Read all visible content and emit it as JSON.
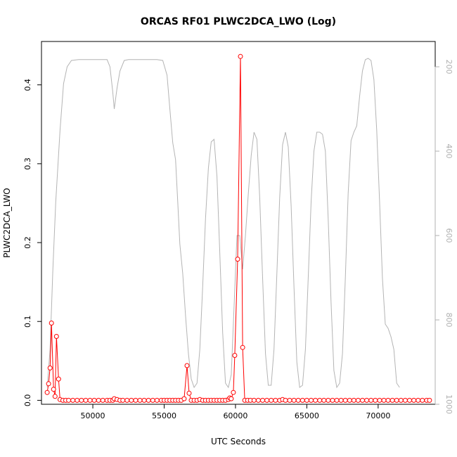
{
  "chart_data": {
    "type": "line",
    "title": "ORCAS RF01 PLWC2DCA_LWO (Log)",
    "xlabel": "UTC Seconds",
    "ylabel": "PLWC2DCA_LWO",
    "xlim": [
      46400,
      74000
    ],
    "ylim": [
      -0.005,
      0.455
    ],
    "x_ticks": [
      50000,
      55000,
      60000,
      65000,
      70000
    ],
    "x_tick_labels": [
      "50000",
      "55000",
      "60000",
      "65000",
      "70000"
    ],
    "y_ticks": [
      0.0,
      0.1,
      0.2,
      0.3,
      0.4
    ],
    "y_tick_labels": [
      "0.0",
      "0.1",
      "0.2",
      "0.3",
      "0.4"
    ],
    "y2_reversed": true,
    "y2lim": [
      1000,
      140
    ],
    "y2_ticks": [
      200,
      400,
      600,
      800,
      1000
    ],
    "y2_tick_labels": [
      "200",
      "400",
      "600",
      "800",
      "1000"
    ],
    "grid": false,
    "colors": {
      "lwc": "#ff0000",
      "pressure": "#b4b4b4"
    },
    "series": [
      {
        "axis": "left",
        "marker": "open-circle",
        "points": [
          [
            46800,
            0.01
          ],
          [
            46900,
            0.021
          ],
          [
            47000,
            0.041
          ],
          [
            47100,
            0.098
          ],
          [
            47250,
            0.014
          ],
          [
            47350,
            0.005
          ],
          [
            47450,
            0.081
          ],
          [
            47600,
            0.027
          ],
          [
            47700,
            0.001
          ],
          [
            47900,
            0.0
          ],
          [
            48100,
            0.0
          ],
          [
            48300,
            0.0
          ],
          [
            48600,
            0.0
          ],
          [
            48900,
            0.0
          ],
          [
            49200,
            0.0
          ],
          [
            49500,
            0.0
          ],
          [
            49800,
            0.0
          ],
          [
            50100,
            0.0
          ],
          [
            50400,
            0.0
          ],
          [
            50700,
            0.0
          ],
          [
            51000,
            0.0
          ],
          [
            51200,
            0.0
          ],
          [
            51400,
            0.0
          ],
          [
            51500,
            0.002
          ],
          [
            51700,
            0.001
          ],
          [
            51900,
            0.0
          ],
          [
            52100,
            0.0
          ],
          [
            52400,
            0.0
          ],
          [
            52700,
            0.0
          ],
          [
            53000,
            0.0
          ],
          [
            53300,
            0.0
          ],
          [
            53600,
            0.0
          ],
          [
            53900,
            0.0
          ],
          [
            54200,
            0.0
          ],
          [
            54500,
            0.0
          ],
          [
            54800,
            0.0
          ],
          [
            55000,
            0.0
          ],
          [
            55200,
            0.0
          ],
          [
            55400,
            0.0
          ],
          [
            55600,
            0.0
          ],
          [
            55800,
            0.0
          ],
          [
            56000,
            0.0
          ],
          [
            56200,
            0.0
          ],
          [
            56400,
            0.002
          ],
          [
            56600,
            0.044
          ],
          [
            56750,
            0.009
          ],
          [
            56900,
            0.0
          ],
          [
            57100,
            0.0
          ],
          [
            57300,
            0.0
          ],
          [
            57500,
            0.001
          ],
          [
            57700,
            0.0
          ],
          [
            57900,
            0.0
          ],
          [
            58100,
            0.0
          ],
          [
            58300,
            0.0
          ],
          [
            58500,
            0.0
          ],
          [
            58700,
            0.0
          ],
          [
            58900,
            0.0
          ],
          [
            59100,
            0.0
          ],
          [
            59300,
            0.0
          ],
          [
            59500,
            0.001
          ],
          [
            59600,
            0.003
          ],
          [
            59700,
            0.002
          ],
          [
            59850,
            0.01
          ],
          [
            59950,
            0.057
          ],
          [
            60150,
            0.179
          ],
          [
            60350,
            0.436
          ],
          [
            60500,
            0.067
          ],
          [
            60650,
            0.0
          ],
          [
            60850,
            0.0
          ],
          [
            61050,
            0.0
          ],
          [
            61300,
            0.0
          ],
          [
            61600,
            0.0
          ],
          [
            61900,
            0.0
          ],
          [
            62200,
            0.0
          ],
          [
            62500,
            0.0
          ],
          [
            62800,
            0.0
          ],
          [
            63100,
            0.0
          ],
          [
            63300,
            0.001
          ],
          [
            63500,
            0.0
          ],
          [
            63800,
            0.0
          ],
          [
            64100,
            0.0
          ],
          [
            64400,
            0.0
          ],
          [
            64700,
            0.0
          ],
          [
            65000,
            0.0
          ],
          [
            65300,
            0.0
          ],
          [
            65600,
            0.0
          ],
          [
            65900,
            0.0
          ],
          [
            66200,
            0.0
          ],
          [
            66500,
            0.0
          ],
          [
            66800,
            0.0
          ],
          [
            67100,
            0.0
          ],
          [
            67400,
            0.0
          ],
          [
            67700,
            0.0
          ],
          [
            68000,
            0.0
          ],
          [
            68300,
            0.0
          ],
          [
            68600,
            0.0
          ],
          [
            68900,
            0.0
          ],
          [
            69200,
            0.0
          ],
          [
            69500,
            0.0
          ],
          [
            69800,
            0.0
          ],
          [
            70100,
            0.0
          ],
          [
            70400,
            0.0
          ],
          [
            70700,
            0.0
          ],
          [
            71000,
            0.0
          ],
          [
            71300,
            0.0
          ],
          [
            71600,
            0.0
          ],
          [
            71900,
            0.0
          ],
          [
            72200,
            0.0
          ],
          [
            72500,
            0.0
          ],
          [
            72800,
            0.0
          ],
          [
            73100,
            0.0
          ],
          [
            73400,
            0.0
          ],
          [
            73600,
            0.0
          ]
        ]
      },
      {
        "axis": "right",
        "marker": "none",
        "points": [
          [
            46800,
            960
          ],
          [
            47000,
            870
          ],
          [
            47200,
            680
          ],
          [
            47400,
            520
          ],
          [
            47700,
            350
          ],
          [
            47950,
            240
          ],
          [
            48200,
            200
          ],
          [
            48500,
            185
          ],
          [
            49000,
            183
          ],
          [
            50000,
            183
          ],
          [
            51000,
            183
          ],
          [
            51200,
            200
          ],
          [
            51400,
            260
          ],
          [
            51500,
            300
          ],
          [
            51700,
            250
          ],
          [
            51900,
            210
          ],
          [
            52200,
            185
          ],
          [
            52500,
            183
          ],
          [
            53500,
            183
          ],
          [
            54500,
            183
          ],
          [
            54900,
            185
          ],
          [
            55200,
            220
          ],
          [
            55400,
            300
          ],
          [
            55600,
            380
          ],
          [
            55800,
            420
          ],
          [
            55950,
            520
          ],
          [
            56100,
            620
          ],
          [
            56300,
            690
          ],
          [
            56500,
            790
          ],
          [
            56700,
            880
          ],
          [
            56900,
            940
          ],
          [
            57100,
            960
          ],
          [
            57300,
            950
          ],
          [
            57500,
            870
          ],
          [
            57700,
            720
          ],
          [
            57900,
            560
          ],
          [
            58100,
            440
          ],
          [
            58300,
            378
          ],
          [
            58500,
            372
          ],
          [
            58700,
            460
          ],
          [
            58900,
            640
          ],
          [
            59100,
            830
          ],
          [
            59300,
            950
          ],
          [
            59500,
            960
          ],
          [
            59700,
            930
          ],
          [
            59900,
            770
          ],
          [
            60100,
            600
          ],
          [
            60300,
            600
          ],
          [
            60500,
            680
          ],
          [
            60700,
            600
          ],
          [
            60900,
            500
          ],
          [
            61100,
            410
          ],
          [
            61300,
            355
          ],
          [
            61500,
            372
          ],
          [
            61700,
            510
          ],
          [
            61900,
            700
          ],
          [
            62100,
            880
          ],
          [
            62300,
            955
          ],
          [
            62500,
            955
          ],
          [
            62700,
            870
          ],
          [
            62900,
            690
          ],
          [
            63100,
            510
          ],
          [
            63300,
            385
          ],
          [
            63500,
            355
          ],
          [
            63700,
            390
          ],
          [
            63900,
            530
          ],
          [
            64100,
            720
          ],
          [
            64300,
            900
          ],
          [
            64500,
            960
          ],
          [
            64700,
            955
          ],
          [
            64900,
            870
          ],
          [
            65100,
            700
          ],
          [
            65300,
            520
          ],
          [
            65500,
            400
          ],
          [
            65700,
            355
          ],
          [
            65900,
            355
          ],
          [
            66100,
            360
          ],
          [
            66300,
            400
          ],
          [
            66500,
            560
          ],
          [
            66700,
            760
          ],
          [
            66900,
            920
          ],
          [
            67100,
            960
          ],
          [
            67300,
            950
          ],
          [
            67500,
            880
          ],
          [
            67700,
            700
          ],
          [
            67900,
            500
          ],
          [
            68100,
            375
          ],
          [
            68300,
            355
          ],
          [
            68500,
            340
          ],
          [
            68700,
            270
          ],
          [
            68900,
            210
          ],
          [
            69100,
            183
          ],
          [
            69300,
            180
          ],
          [
            69500,
            185
          ],
          [
            69700,
            230
          ],
          [
            69900,
            350
          ],
          [
            70100,
            520
          ],
          [
            70300,
            700
          ],
          [
            70500,
            810
          ],
          [
            70700,
            820
          ],
          [
            70900,
            840
          ],
          [
            71100,
            870
          ],
          [
            71300,
            950
          ],
          [
            71500,
            960
          ]
        ]
      }
    ]
  }
}
